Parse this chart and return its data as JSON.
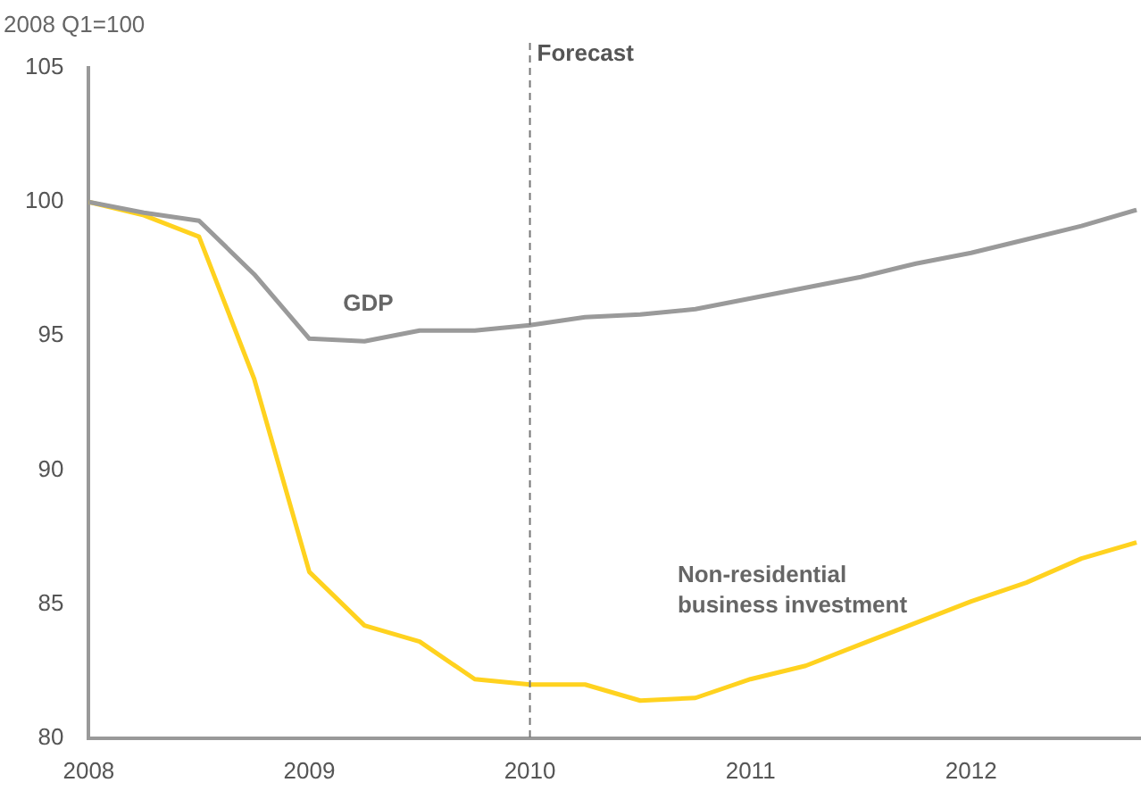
{
  "chart_data": {
    "type": "line",
    "ylabel": "2008 Q1=100",
    "x": [
      2008,
      2008.25,
      2008.5,
      2008.75,
      2009,
      2009.25,
      2009.5,
      2009.75,
      2010,
      2010.25,
      2010.5,
      2010.75,
      2011,
      2011.25,
      2011.5,
      2011.75,
      2012,
      2012.25,
      2012.5,
      2012.75
    ],
    "series": [
      {
        "name": "GDP",
        "color": "#9a9a9a",
        "values": [
          100,
          99.6,
          99.3,
          97.3,
          94.9,
          94.8,
          95.2,
          95.2,
          95.4,
          95.7,
          95.8,
          96.0,
          96.4,
          96.8,
          97.2,
          97.7,
          98.1,
          98.6,
          99.1,
          99.7
        ]
      },
      {
        "name": "Non-residential business investment",
        "color": "#ffd21f",
        "values": [
          100,
          99.5,
          98.7,
          93.4,
          86.2,
          84.2,
          83.6,
          82.2,
          82.0,
          82.0,
          81.4,
          81.5,
          82.2,
          82.7,
          83.5,
          84.3,
          85.1,
          85.8,
          86.7,
          87.3
        ]
      }
    ],
    "xlim": [
      2008,
      2012.77
    ],
    "xticks": [
      2008,
      2009,
      2010,
      2011,
      2012
    ],
    "ylim": [
      80,
      105
    ],
    "yticks": [
      80,
      85,
      90,
      95,
      100,
      105
    ],
    "ref_lines": [
      {
        "axis": "x",
        "value": 2010,
        "label": "Forecast",
        "color": "#777777",
        "line_style": "dashed"
      }
    ],
    "grid": false,
    "legend": false,
    "marker": "none",
    "line_style": "solid"
  }
}
